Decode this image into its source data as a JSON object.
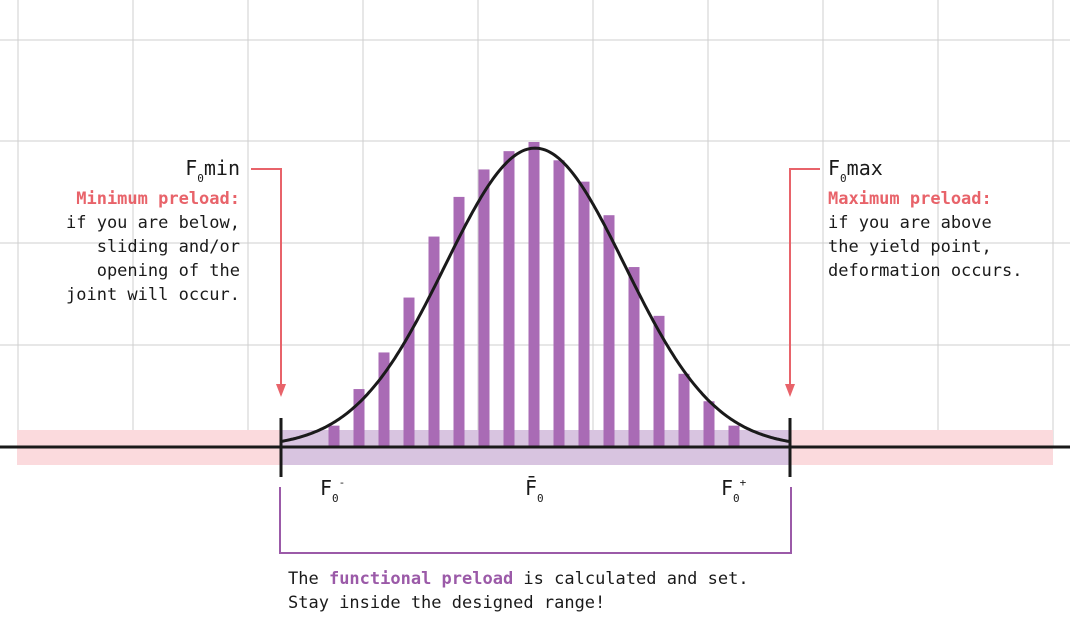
{
  "labels": {
    "fmin_base": "F",
    "fmin_sub": "0",
    "fmin_suffix": "min",
    "fmin_heading": "Minimum preload:",
    "fmin_lines": [
      "if you are below,",
      "sliding and/or",
      "opening of the",
      "joint will occur."
    ],
    "fmax_base": "F",
    "fmax_sub": "0",
    "fmax_suffix": "max",
    "fmax_heading": "Maximum preload:",
    "fmax_lines": [
      "if you are above",
      "the yield point,",
      "deformation occurs."
    ],
    "f_minus_base": "F",
    "f_minus_sub": "0",
    "f_minus_sup": "-",
    "f_bar_base": "F̄",
    "f_bar_sub": "0",
    "f_plus_base": "F",
    "f_plus_sub": "0",
    "f_plus_sup": "+",
    "caption_prefix": "The ",
    "caption_highlight": "functional preload",
    "caption_suffix": " is calculated and set.",
    "caption_line2": "Stay inside the designed range!"
  },
  "distribution": {
    "bar_values": [
      0.07,
      0.19,
      0.31,
      0.49,
      0.69,
      0.82,
      0.91,
      0.97,
      1.0,
      0.94,
      0.87,
      0.76,
      0.59,
      0.43,
      0.24,
      0.15,
      0.07
    ],
    "curve_peak": 0.98
  },
  "colors": {
    "bar": "#a96bb5",
    "curve": "#1a1a1a",
    "range_band": "#d8c4e0",
    "outside_band": "#fbdadd",
    "arrow": "#e8636a",
    "bracket": "#9b5aa8",
    "grid": "#cfcfcf"
  }
}
